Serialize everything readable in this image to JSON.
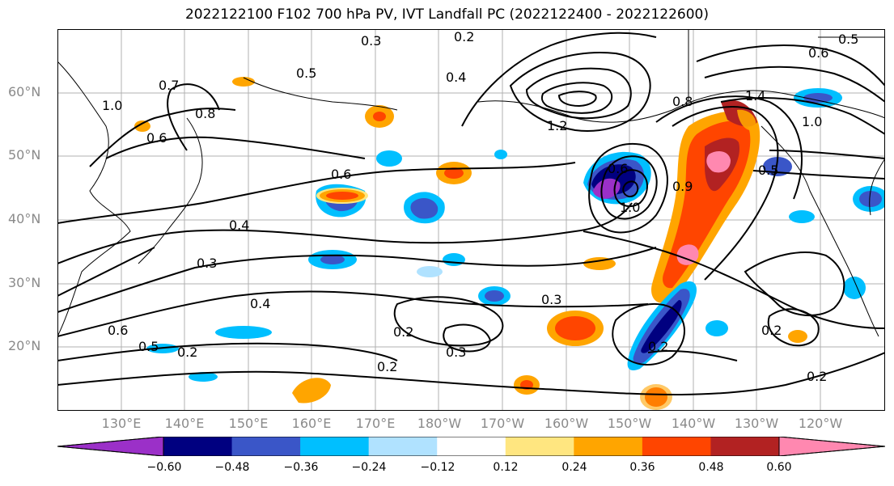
{
  "title": "2022122100 F102 700 hPa PV, IVT Landfall PC (2022122400 - 2022122600)",
  "lat_labels": [
    "60°N",
    "50°N",
    "40°N",
    "30°N",
    "20°N"
  ],
  "lon_labels": [
    "130°E",
    "140°E",
    "150°E",
    "160°E",
    "170°E",
    "180°W",
    "170°W",
    "160°W",
    "150°W",
    "140°W",
    "130°W",
    "120°W"
  ],
  "colorbar": {
    "ticks": [
      "−0.60",
      "−0.48",
      "−0.36",
      "−0.24",
      "−0.12",
      "0.12",
      "0.24",
      "0.36",
      "0.48",
      "0.60"
    ],
    "colors": [
      "#9b30c8",
      "#000080",
      "#3a56c8",
      "#00bfff",
      "#b0e2ff",
      "#ffffff",
      "#ffe680",
      "#ffa500",
      "#ff4500",
      "#b22222",
      "#ff88b0"
    ]
  },
  "contour_labels": [
    "0.3",
    "0.2",
    "0.4",
    "0.5",
    "0.7",
    "0.6",
    "1.0",
    "0.8",
    "1.2",
    "1.4",
    "0.5",
    "0.6",
    "1.0",
    "0.6",
    "0.8",
    "1.0",
    "0.4",
    "0.3",
    "0.3",
    "0.2",
    "0.4",
    "0.6",
    "0.5",
    "0.2",
    "0.2",
    "0.3",
    "0.2",
    "0.2",
    "0.5",
    "0.6",
    "0.9",
    "0.2"
  ]
}
